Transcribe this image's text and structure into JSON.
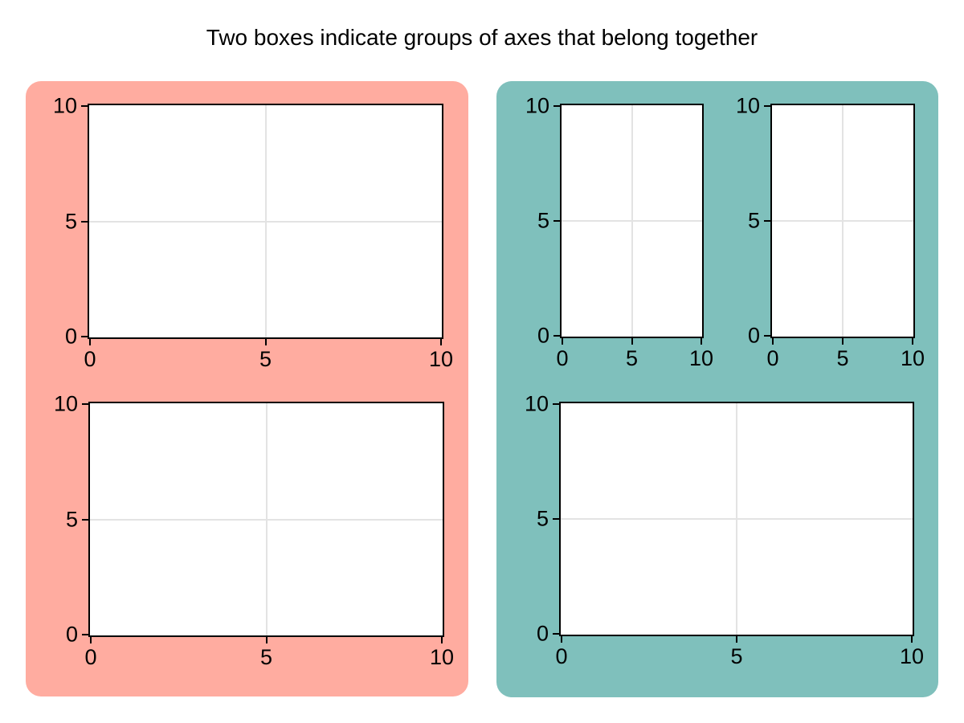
{
  "figure": {
    "title": "Two boxes indicate groups of axes that belong together",
    "background": "#ffffff",
    "groups": [
      {
        "id": "left-group",
        "color": "#ffaca0",
        "axes_count": 2,
        "layout": "2 rows x 1 col"
      },
      {
        "id": "right-group",
        "color": "#7fc0bc",
        "axes_count": 3,
        "layout": "2 small on top row, 1 wide on bottom row"
      }
    ]
  },
  "ticks": {
    "x": [
      "0",
      "5",
      "10"
    ],
    "y": [
      "10",
      "5",
      "0"
    ]
  },
  "chart_data": [
    {
      "id": "left-group-top",
      "group": "left-group",
      "type": "line",
      "series": [],
      "title": "",
      "xlabel": "",
      "ylabel": "",
      "xlim": [
        0,
        10
      ],
      "ylim": [
        0,
        10
      ],
      "xticks": [
        0,
        5,
        10
      ],
      "yticks": [
        0,
        5,
        10
      ],
      "grid": true,
      "note": "empty axes"
    },
    {
      "id": "left-group-bottom",
      "group": "left-group",
      "type": "line",
      "series": [],
      "title": "",
      "xlabel": "",
      "ylabel": "",
      "xlim": [
        0,
        10
      ],
      "ylim": [
        0,
        10
      ],
      "xticks": [
        0,
        5,
        10
      ],
      "yticks": [
        0,
        5,
        10
      ],
      "grid": true,
      "note": "empty axes"
    },
    {
      "id": "right-group-top-left",
      "group": "right-group",
      "type": "line",
      "series": [],
      "title": "",
      "xlabel": "",
      "ylabel": "",
      "xlim": [
        0,
        10
      ],
      "ylim": [
        0,
        10
      ],
      "xticks": [
        0,
        5,
        10
      ],
      "yticks": [
        0,
        5,
        10
      ],
      "grid": true,
      "note": "empty axes"
    },
    {
      "id": "right-group-top-right",
      "group": "right-group",
      "type": "line",
      "series": [],
      "title": "",
      "xlabel": "",
      "ylabel": "",
      "xlim": [
        0,
        10
      ],
      "ylim": [
        0,
        10
      ],
      "xticks": [
        0,
        5,
        10
      ],
      "yticks": [
        0,
        5,
        10
      ],
      "grid": true,
      "note": "empty axes"
    },
    {
      "id": "right-group-bottom",
      "group": "right-group",
      "type": "line",
      "series": [],
      "title": "",
      "xlabel": "",
      "ylabel": "",
      "xlim": [
        0,
        10
      ],
      "ylim": [
        0,
        10
      ],
      "xticks": [
        0,
        5,
        10
      ],
      "yticks": [
        0,
        5,
        10
      ],
      "grid": true,
      "note": "empty axes"
    }
  ]
}
